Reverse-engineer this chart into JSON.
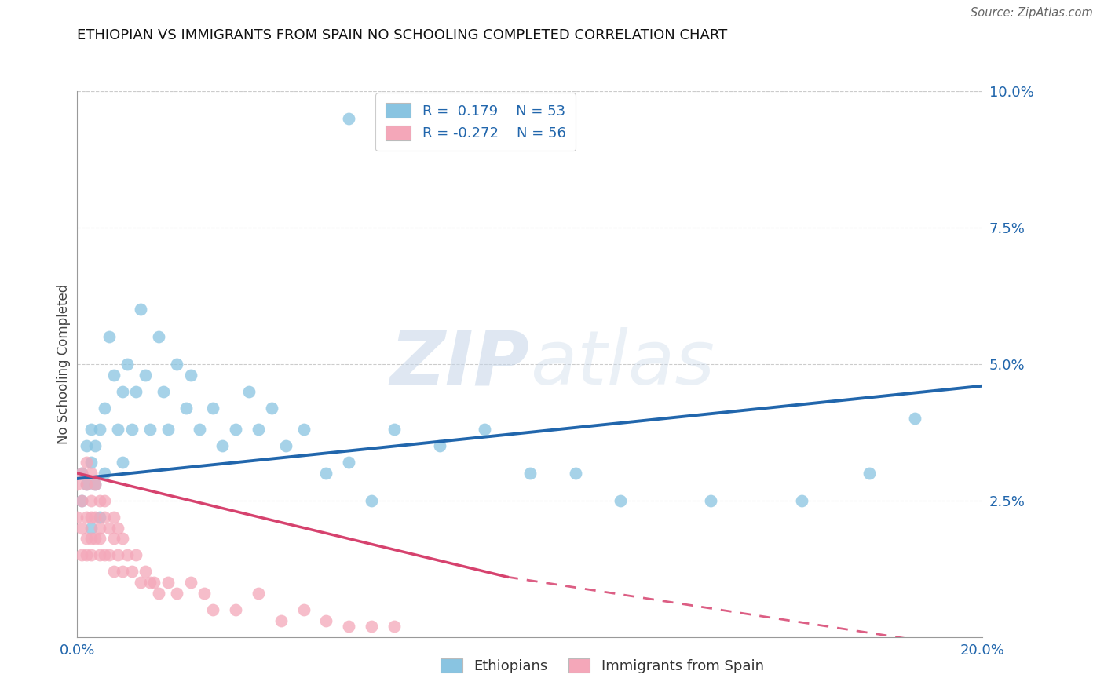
{
  "title": "ETHIOPIAN VS IMMIGRANTS FROM SPAIN NO SCHOOLING COMPLETED CORRELATION CHART",
  "source": "Source: ZipAtlas.com",
  "ylabel": "No Schooling Completed",
  "xlim": [
    0.0,
    0.2
  ],
  "ylim": [
    0.0,
    0.1
  ],
  "xticks": [
    0.0,
    0.2
  ],
  "yticks": [
    0.0,
    0.025,
    0.05,
    0.075,
    0.1
  ],
  "xtick_labels": [
    "0.0%",
    "20.0%"
  ],
  "ytick_labels": [
    "",
    "2.5%",
    "5.0%",
    "7.5%",
    "10.0%"
  ],
  "blue_color": "#89c4e1",
  "pink_color": "#f4a7b9",
  "blue_line_color": "#2166ac",
  "pink_line_color": "#d6426e",
  "legend_r_blue": "R =  0.179",
  "legend_n_blue": "N = 53",
  "legend_r_pink": "R = -0.272",
  "legend_n_pink": "N = 56",
  "legend_label_blue": "Ethiopians",
  "legend_label_pink": "Immigrants from Spain",
  "watermark_zip": "ZIP",
  "watermark_atlas": "atlas",
  "ethiopians_x": [
    0.001,
    0.001,
    0.002,
    0.002,
    0.003,
    0.003,
    0.003,
    0.004,
    0.004,
    0.005,
    0.005,
    0.006,
    0.006,
    0.007,
    0.008,
    0.009,
    0.01,
    0.01,
    0.011,
    0.012,
    0.013,
    0.014,
    0.015,
    0.016,
    0.018,
    0.019,
    0.02,
    0.022,
    0.024,
    0.025,
    0.027,
    0.03,
    0.032,
    0.035,
    0.038,
    0.04,
    0.043,
    0.046,
    0.05,
    0.055,
    0.06,
    0.065,
    0.07,
    0.08,
    0.09,
    0.1,
    0.11,
    0.12,
    0.14,
    0.16,
    0.175,
    0.185,
    0.06
  ],
  "ethiopians_y": [
    0.03,
    0.025,
    0.035,
    0.028,
    0.038,
    0.032,
    0.02,
    0.035,
    0.028,
    0.038,
    0.022,
    0.042,
    0.03,
    0.055,
    0.048,
    0.038,
    0.045,
    0.032,
    0.05,
    0.038,
    0.045,
    0.06,
    0.048,
    0.038,
    0.055,
    0.045,
    0.038,
    0.05,
    0.042,
    0.048,
    0.038,
    0.042,
    0.035,
    0.038,
    0.045,
    0.038,
    0.042,
    0.035,
    0.038,
    0.03,
    0.032,
    0.025,
    0.038,
    0.035,
    0.038,
    0.03,
    0.03,
    0.025,
    0.025,
    0.025,
    0.03,
    0.04,
    0.095
  ],
  "spain_x": [
    0.0,
    0.0,
    0.001,
    0.001,
    0.001,
    0.001,
    0.002,
    0.002,
    0.002,
    0.002,
    0.002,
    0.003,
    0.003,
    0.003,
    0.003,
    0.003,
    0.004,
    0.004,
    0.004,
    0.005,
    0.005,
    0.005,
    0.005,
    0.006,
    0.006,
    0.006,
    0.007,
    0.007,
    0.008,
    0.008,
    0.008,
    0.009,
    0.009,
    0.01,
    0.01,
    0.011,
    0.012,
    0.013,
    0.014,
    0.015,
    0.016,
    0.017,
    0.018,
    0.02,
    0.022,
    0.025,
    0.028,
    0.03,
    0.035,
    0.04,
    0.045,
    0.05,
    0.055,
    0.06,
    0.065,
    0.07
  ],
  "spain_y": [
    0.028,
    0.022,
    0.03,
    0.025,
    0.02,
    0.015,
    0.032,
    0.028,
    0.022,
    0.018,
    0.015,
    0.03,
    0.025,
    0.022,
    0.018,
    0.015,
    0.028,
    0.022,
    0.018,
    0.025,
    0.02,
    0.018,
    0.015,
    0.025,
    0.022,
    0.015,
    0.02,
    0.015,
    0.022,
    0.018,
    0.012,
    0.02,
    0.015,
    0.018,
    0.012,
    0.015,
    0.012,
    0.015,
    0.01,
    0.012,
    0.01,
    0.01,
    0.008,
    0.01,
    0.008,
    0.01,
    0.008,
    0.005,
    0.005,
    0.008,
    0.003,
    0.005,
    0.003,
    0.002,
    0.002,
    0.002
  ],
  "blue_trend": [
    0.0,
    0.2,
    0.029,
    0.046
  ],
  "pink_trend_solid": [
    0.0,
    0.095,
    0.03,
    0.011
  ],
  "pink_trend_dash": [
    0.095,
    0.22,
    0.011,
    -0.005
  ]
}
